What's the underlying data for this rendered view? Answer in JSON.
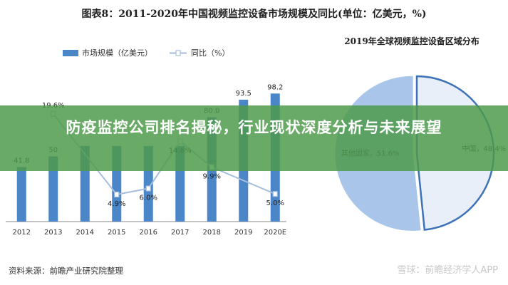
{
  "header": {
    "title": "图表8：2011-2020年中国视频监控设备市场规模及同比(单位：亿美元，%)"
  },
  "banner": {
    "headline": "防疫监控公司排名揭秘，行业现状深度分析与未来展望"
  },
  "footer": {
    "source": "资料来源：前瞻产业研究院整理",
    "watermark": "雪球：前瞻经济学人APP"
  },
  "colors": {
    "bar": "#4a86c8",
    "line": "#a6bedd",
    "pie_china": "#3d72b8",
    "pie_other": "#a9c6ea",
    "banner": "#4e9a4a"
  },
  "chart_data": [
    {
      "type": "bar",
      "title": "图表8：2011-2020年中国视频监控设备市场规模及同比(单位：亿美元，%)",
      "categories": [
        "2012",
        "2013",
        "2014",
        "2015",
        "2016",
        "2017",
        "2018",
        "2019",
        "2020E"
      ],
      "series": [
        {
          "name": "市场规模（亿美元）",
          "type": "bar",
          "values": [
            41.8,
            50,
            null,
            null,
            null,
            null,
            80.0,
            93.5,
            98.2
          ],
          "labels": [
            "41.8",
            "50",
            "",
            "",
            "",
            "",
            "80.0",
            "93.5",
            "98.2"
          ]
        },
        {
          "name": "同比（%）",
          "type": "line",
          "values": [
            null,
            19.6,
            null,
            4.9,
            6.0,
            14.6,
            9.9,
            null,
            5.0
          ],
          "labels": [
            "",
            "19.6%",
            "",
            "4.9%",
            "6.0%",
            "14.6%",
            "9.9%",
            "",
            "5.0%"
          ]
        }
      ],
      "legend": "top-left",
      "grid": false
    },
    {
      "type": "pie",
      "title": "2019年全球视频监控设备区域分布",
      "slices": [
        {
          "label": "中国",
          "value": 48.4,
          "text": "中国，48.4%"
        },
        {
          "label": "其他国家",
          "value": 51.6,
          "text": "其他国家，51.6%"
        }
      ]
    }
  ]
}
